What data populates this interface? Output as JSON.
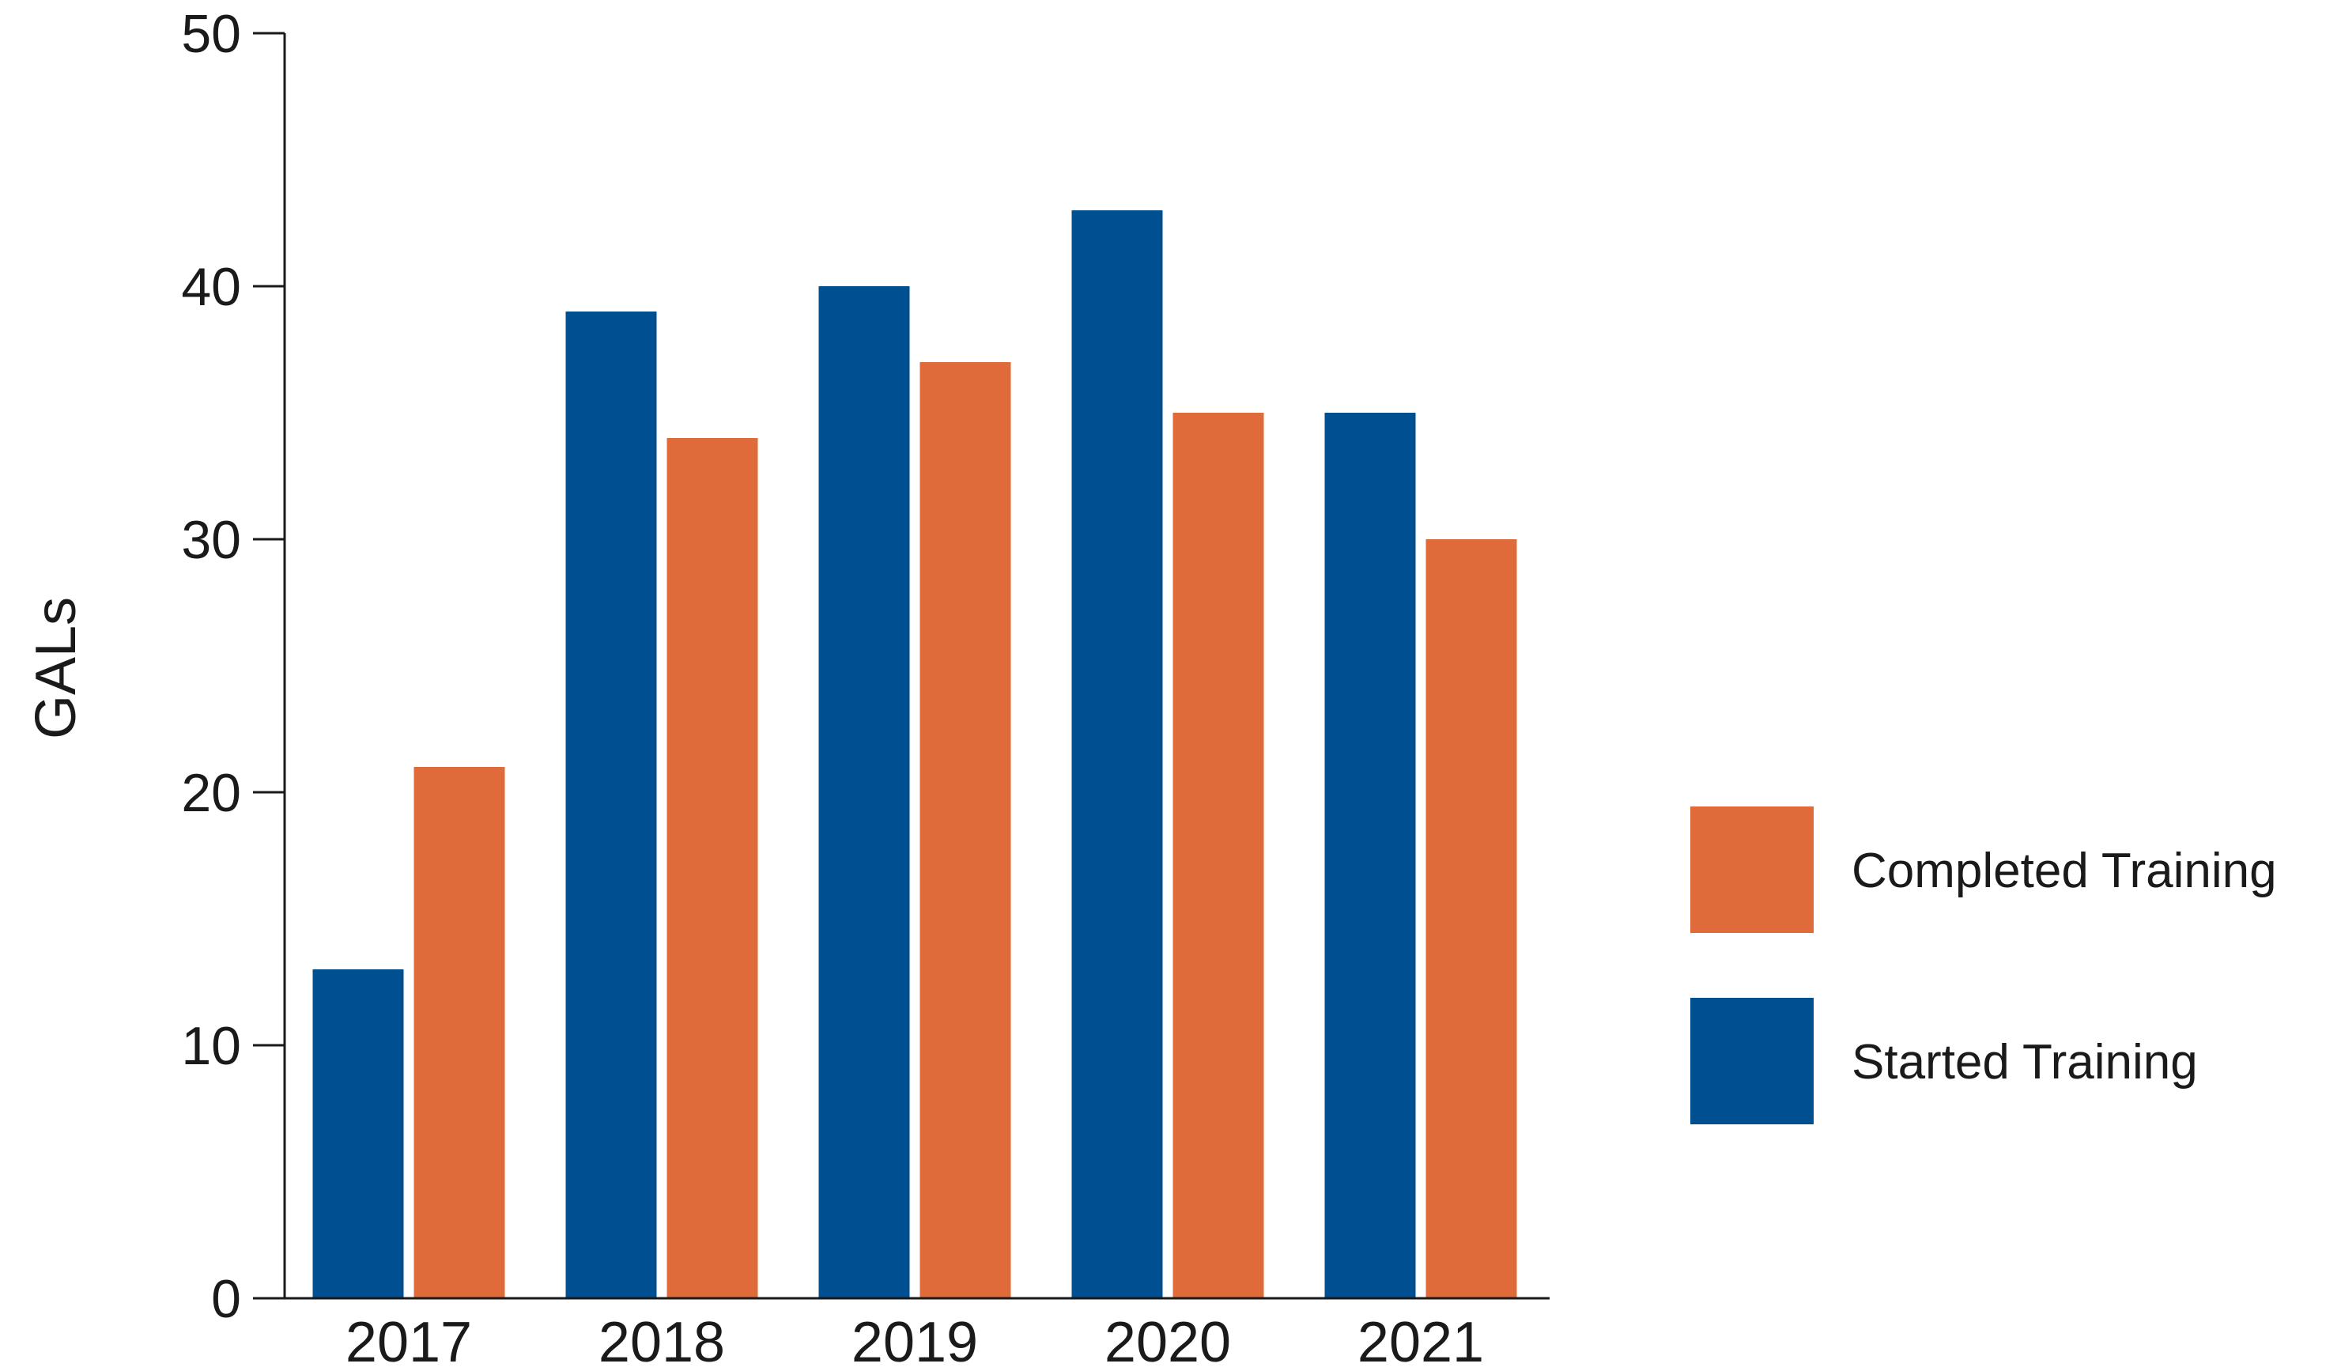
{
  "chart_data": {
    "type": "bar",
    "title": "",
    "xlabel": "",
    "ylabel": "GALs",
    "ylim": [
      0,
      50
    ],
    "yticks": [
      0,
      10,
      20,
      30,
      40,
      50
    ],
    "grid": false,
    "legend_position": "right",
    "categories": [
      "2017",
      "2018",
      "2019",
      "2020",
      "2021"
    ],
    "series": [
      {
        "name": "Started Training",
        "color": "#004f91",
        "values": [
          13,
          39,
          40,
          43,
          35
        ]
      },
      {
        "name": "Completed Training",
        "color": "#e06b3a",
        "values": [
          21,
          34,
          37,
          35,
          30
        ]
      }
    ],
    "legend": [
      {
        "label": "Completed Training",
        "color": "#e06b3a"
      },
      {
        "label": "Started Training",
        "color": "#004f91"
      }
    ]
  }
}
